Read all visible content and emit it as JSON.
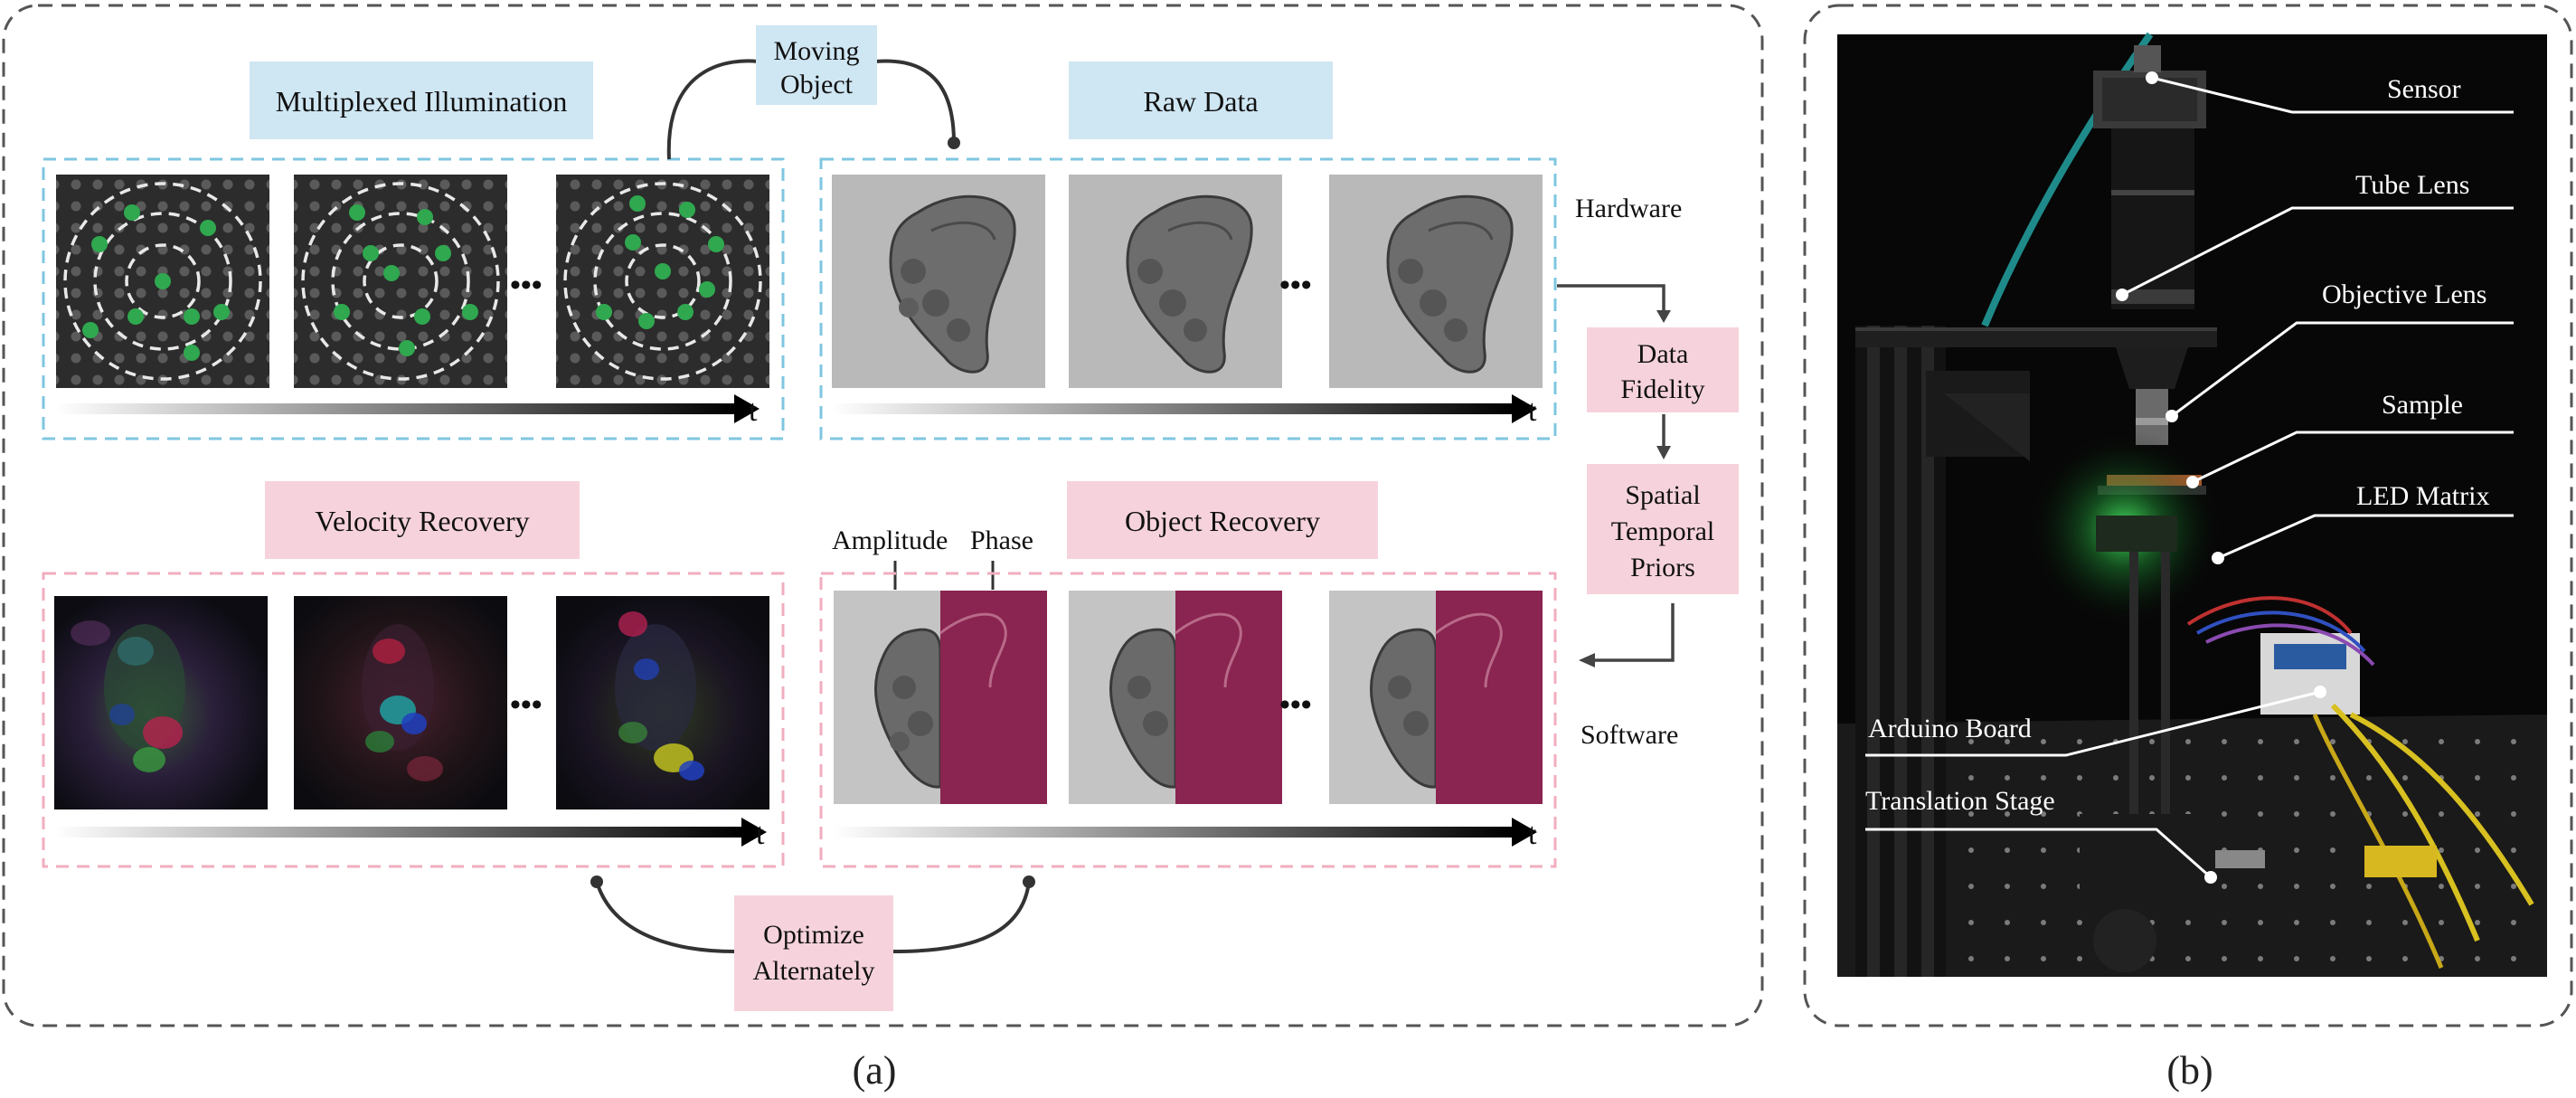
{
  "panel_a": {
    "caption": "(a)",
    "labels": {
      "multiplexed_illumination": "Multiplexed Illumination",
      "moving_object_1": "Moving",
      "moving_object_2": "Object",
      "raw_data": "Raw Data",
      "hardware": "Hardware",
      "data_fidelity_1": "Data",
      "data_fidelity_2": "Fidelity",
      "priors_1": "Spatial",
      "priors_2": "Temporal",
      "priors_3": "Priors",
      "velocity_recovery": "Velocity Recovery",
      "object_recovery": "Object Recovery",
      "amplitude": "Amplitude",
      "phase": "Phase",
      "software": "Software",
      "optimize_1": "Optimize",
      "optimize_2": "Alternately",
      "time_axis": "t",
      "ellipsis": "•••"
    }
  },
  "panel_b": {
    "caption": "(b)",
    "components": [
      "Sensor",
      "Tube Lens",
      "Objective Lens",
      "Sample",
      "LED Matrix",
      "Arduino Board",
      "Translation Stage"
    ]
  },
  "colors": {
    "blue_label_bg": "#cfe6f3",
    "pink_label_bg": "#f6d3dc",
    "blue_dash": "#7fc6e0",
    "pink_dash": "#f0aebf",
    "led_green": "#2fa84f",
    "phase": "#8a2450",
    "panel_border": "#555555"
  }
}
